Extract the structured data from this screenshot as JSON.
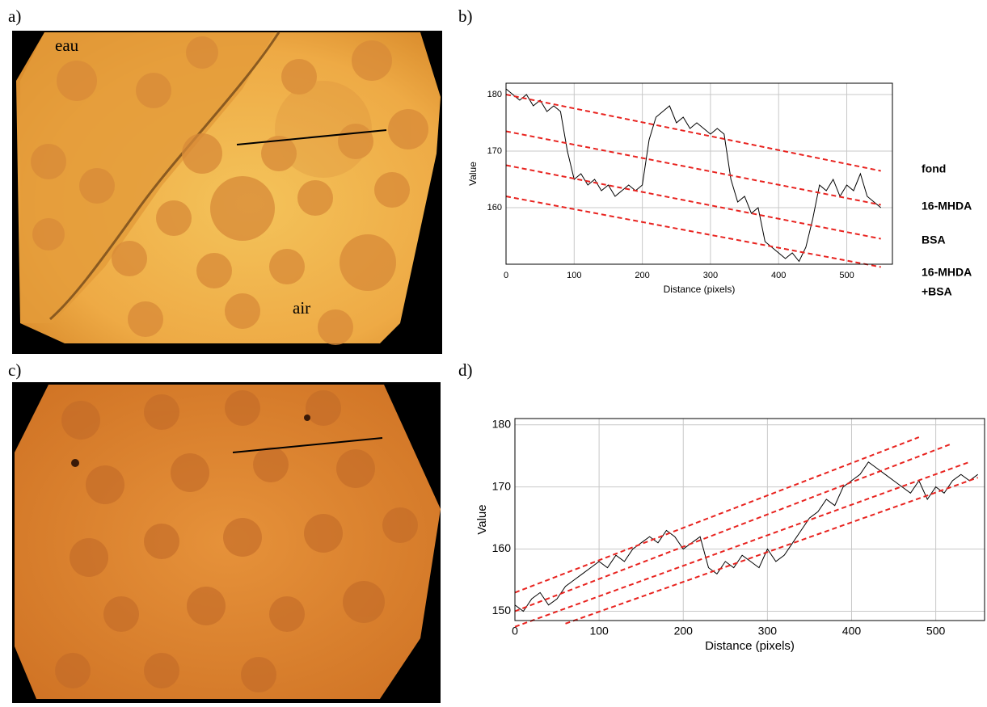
{
  "panels": {
    "a": {
      "label": "a)",
      "texts": [
        "eau",
        "air"
      ]
    },
    "b": {
      "label": "b)"
    },
    "c": {
      "label": "c)"
    },
    "d": {
      "label": "d)"
    }
  },
  "chart_data": [
    {
      "type": "line",
      "xlabel": "Distance (pixels)",
      "ylabel": "Value",
      "xlim": [
        0,
        567
      ],
      "ylim": [
        150,
        182
      ],
      "xticks": [
        0,
        100,
        200,
        300,
        400,
        500
      ],
      "yticks": [
        160,
        170,
        180
      ],
      "grid": true,
      "series": [
        {
          "color": "#000000",
          "dashed": false,
          "x": [
            0,
            10,
            20,
            30,
            40,
            50,
            60,
            70,
            80,
            90,
            100,
            110,
            120,
            130,
            140,
            150,
            160,
            170,
            180,
            190,
            200,
            210,
            220,
            230,
            240,
            250,
            260,
            270,
            280,
            290,
            300,
            310,
            320,
            330,
            340,
            350,
            360,
            370,
            380,
            390,
            400,
            410,
            420,
            430,
            440,
            450,
            460,
            470,
            480,
            490,
            500,
            510,
            520,
            530,
            540,
            550
          ],
          "values": [
            181,
            180,
            179,
            180,
            178,
            179,
            177,
            178,
            177,
            170,
            165,
            166,
            164,
            165,
            163,
            164,
            162,
            163,
            164,
            163,
            164,
            172,
            176,
            177,
            178,
            175,
            176,
            174,
            175,
            174,
            173,
            174,
            173,
            165,
            161,
            162,
            159,
            160,
            154,
            153,
            152,
            151,
            152,
            150.5,
            153,
            158,
            164,
            163,
            165,
            162,
            164,
            163,
            166,
            162,
            161,
            160
          ]
        },
        {
          "color": "#e8231f",
          "dashed": true,
          "x": [
            0,
            550
          ],
          "values": [
            180,
            166.5
          ]
        },
        {
          "color": "#e8231f",
          "dashed": true,
          "x": [
            0,
            550
          ],
          "values": [
            173.5,
            160.5
          ]
        },
        {
          "color": "#e8231f",
          "dashed": true,
          "x": [
            0,
            550
          ],
          "values": [
            167.5,
            154.5
          ]
        },
        {
          "color": "#e8231f",
          "dashed": true,
          "x": [
            0,
            550
          ],
          "values": [
            162,
            149.5
          ]
        }
      ],
      "annotations": [
        "fond",
        "16-MHDA",
        "BSA",
        "16-MHDA",
        "+BSA"
      ]
    },
    {
      "type": "line",
      "xlabel": "Distance (pixels)",
      "ylabel": "Value",
      "xlim": [
        0,
        558
      ],
      "ylim": [
        148.5,
        181
      ],
      "xticks": [
        0,
        100,
        200,
        300,
        400,
        500
      ],
      "yticks": [
        150,
        160,
        170,
        180
      ],
      "grid": true,
      "series": [
        {
          "color": "#000000",
          "dashed": false,
          "x": [
            0,
            10,
            20,
            30,
            40,
            50,
            60,
            70,
            80,
            90,
            100,
            110,
            120,
            130,
            140,
            150,
            160,
            170,
            180,
            190,
            200,
            210,
            220,
            230,
            240,
            250,
            260,
            270,
            280,
            290,
            300,
            310,
            320,
            330,
            340,
            350,
            360,
            370,
            380,
            390,
            400,
            410,
            420,
            430,
            440,
            450,
            460,
            470,
            480,
            490,
            500,
            510,
            520,
            530,
            540,
            550
          ],
          "values": [
            151,
            150,
            152,
            153,
            151,
            152,
            154,
            155,
            156,
            157,
            158,
            157,
            159,
            158,
            160,
            161,
            162,
            161,
            163,
            162,
            160,
            161,
            162,
            157,
            156,
            158,
            157,
            159,
            158,
            157,
            160,
            158,
            159,
            161,
            163,
            165,
            166,
            168,
            167,
            170,
            171,
            172,
            174,
            173,
            172,
            171,
            170,
            169,
            171,
            168,
            170,
            169,
            171,
            172,
            171,
            172
          ]
        },
        {
          "color": "#e8231f",
          "dashed": true,
          "x": [
            0,
            480
          ],
          "values": [
            153,
            178
          ]
        },
        {
          "color": "#e8231f",
          "dashed": true,
          "x": [
            0,
            520
          ],
          "values": [
            150,
            177
          ]
        },
        {
          "color": "#e8231f",
          "dashed": true,
          "x": [
            0,
            540
          ],
          "values": [
            147.5,
            174
          ]
        },
        {
          "color": "#e8231f",
          "dashed": true,
          "x": [
            60,
            550
          ],
          "values": [
            148,
            171.5
          ]
        }
      ]
    }
  ]
}
